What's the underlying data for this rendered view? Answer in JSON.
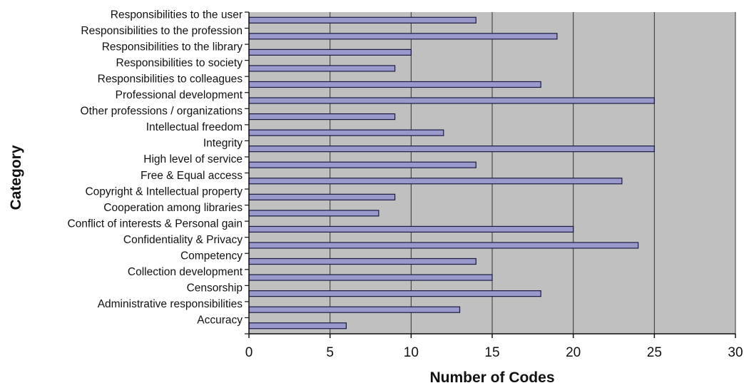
{
  "chart_data": {
    "type": "bar",
    "orientation": "horizontal",
    "title": "",
    "xlabel": "Number of Codes",
    "ylabel": "Category",
    "xlim": [
      0,
      30
    ],
    "xticks": [
      "0",
      "5",
      "10",
      "15",
      "20",
      "25",
      "30"
    ],
    "grid": "vertical",
    "categories": [
      "Responsibilities to the user",
      "Responsibilities to the profession",
      "Responsibilities to the library",
      "Responsibilities to society",
      "Responsibilities to colleagues",
      "Professional development",
      "Other professions / organizations",
      "Intellectual freedom",
      "Integrity",
      "High level of service",
      "Free  & Equal access",
      "Copyright & Intellectual property",
      "Cooperation among libraries",
      "Conflict of interests & Personal gain",
      "Confidentiality & Privacy",
      "Competency",
      "Collection development",
      "Censorship",
      "Administrative responsibilities",
      "Accuracy"
    ],
    "values": [
      14,
      19,
      10,
      9,
      18,
      25,
      9,
      12,
      25,
      14,
      23,
      9,
      8,
      20,
      24,
      14,
      15,
      18,
      13,
      6
    ],
    "colors": {
      "plot_background": "#c0c0c0",
      "bar_fill": "#9999cc",
      "bar_stroke": "#1a1a40",
      "gridline": "#333333"
    }
  }
}
